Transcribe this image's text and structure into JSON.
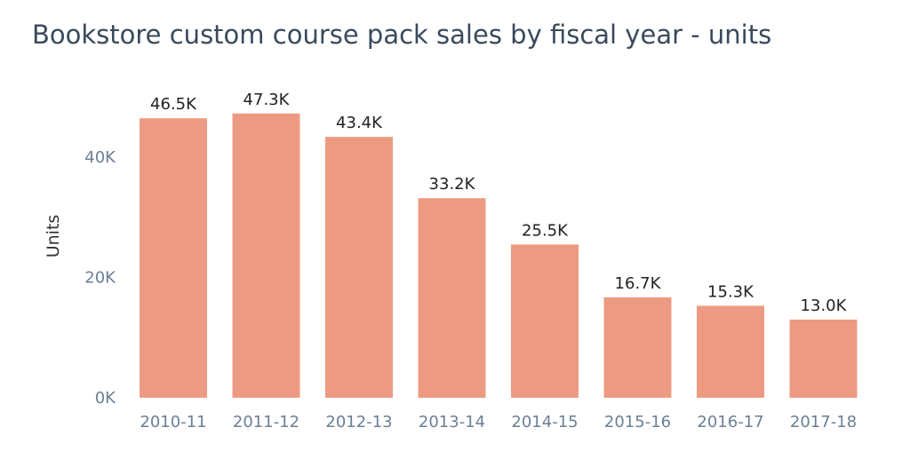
{
  "chart_data": {
    "type": "bar",
    "title": "Bookstore custom course pack sales by fiscal year - units",
    "ylabel": "Units",
    "xlabel": "",
    "categories": [
      "2010-11",
      "2011-12",
      "2012-13",
      "2013-14",
      "2014-15",
      "2015-16",
      "2016-17",
      "2017-18"
    ],
    "values": [
      46500,
      47300,
      43400,
      33200,
      25500,
      16700,
      15300,
      13000
    ],
    "data_labels": [
      "46.5K",
      "47.3K",
      "43.4K",
      "33.2K",
      "25.5K",
      "16.7K",
      "15.3K",
      "13.0K"
    ],
    "ylim": [
      0,
      50000
    ],
    "yticks": [
      0,
      20000,
      40000
    ],
    "ytick_labels": [
      "0K",
      "20K",
      "40K"
    ],
    "grid": false,
    "bar_color": "#ec9b82"
  }
}
